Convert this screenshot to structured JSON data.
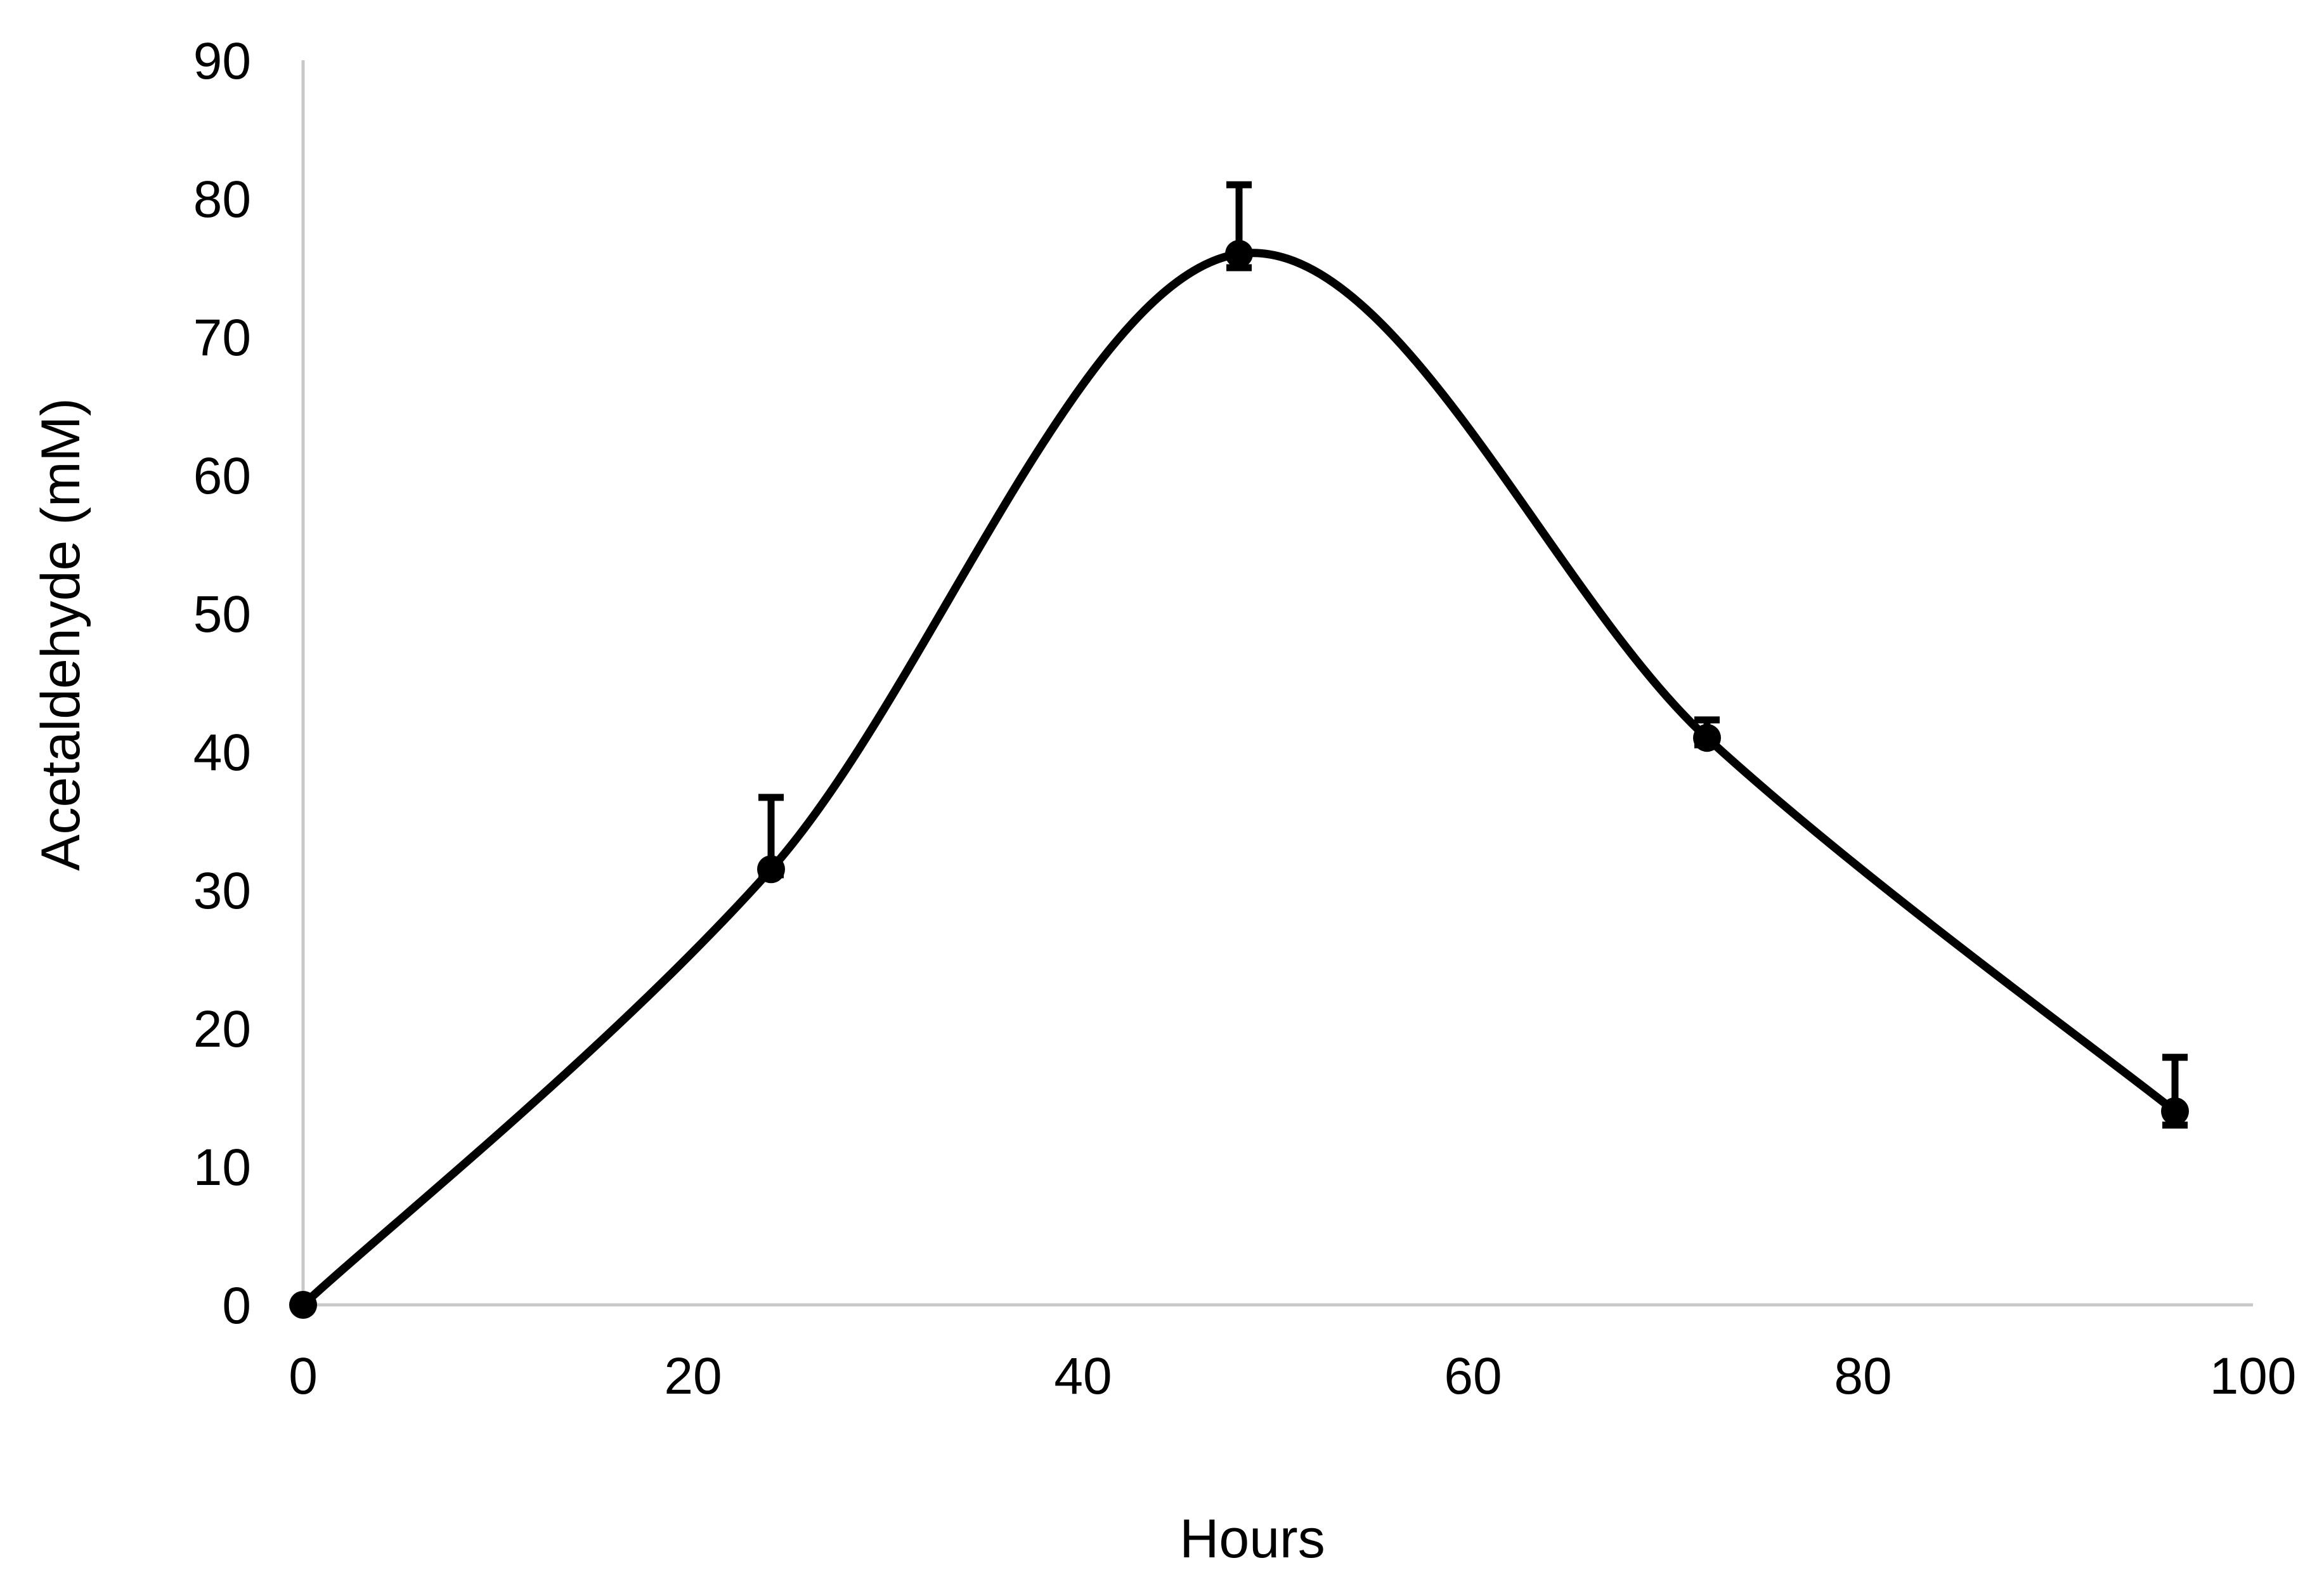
{
  "chart_data": {
    "type": "scatter",
    "smoothed_line": true,
    "title": "",
    "xlabel": "Hours",
    "ylabel": "Acetaldehyde (mM)",
    "xlim": [
      0,
      100
    ],
    "ylim": [
      0,
      90
    ],
    "x_ticks": [
      0,
      20,
      40,
      60,
      80,
      100
    ],
    "y_ticks": [
      0,
      10,
      20,
      30,
      40,
      50,
      60,
      70,
      80,
      90
    ],
    "grid": false,
    "legend": "none",
    "series": [
      {
        "x": [
          0,
          24,
          48,
          72,
          96
        ],
        "y": [
          0,
          31.5,
          76,
          41,
          14
        ],
        "error_plus": [
          0,
          5.2,
          5.0,
          1.3,
          3.9
        ],
        "error_minus": [
          0,
          0.4,
          1.0,
          0.5,
          1.0
        ],
        "color": "#000000"
      }
    ]
  }
}
